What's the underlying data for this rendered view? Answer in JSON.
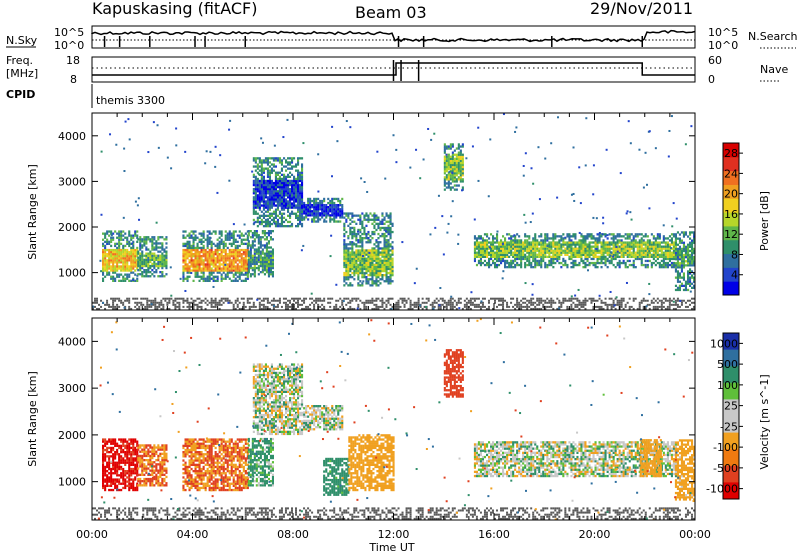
{
  "header": {
    "station": "Kapuskasing (fitACF)",
    "beam": "Beam 03",
    "date": "29/Nov/2011"
  },
  "status_panels": {
    "nsky_label": "N.Sky",
    "nsky_scale_top": "10^5",
    "nsky_scale_bottom": "10^0",
    "nsearch_label": "N.Search",
    "nsearch_scale_top": "10^5",
    "nsearch_scale_bottom": "10^0",
    "freq_label_line1": "Freq.",
    "freq_label_line2": "[MHz]",
    "freq_ticks": [
      "18",
      "8"
    ],
    "nave_label": "Nave",
    "nave_ticks": [
      "60",
      "0"
    ],
    "cpid_label": "CPID",
    "cpid_value": "themis 3300"
  },
  "colors": {
    "background_scatter": "#5a5a5a",
    "power_scale": [
      "#0000e6",
      "#2244cc",
      "#2f6f9f",
      "#2f8f6a",
      "#5fb64a",
      "#b6d62a",
      "#f0d020",
      "#f0a020",
      "#f07020",
      "#e03020",
      "#d80000"
    ],
    "velocity_scale": [
      "#1a2fa8",
      "#2f6f9f",
      "#2f8f6a",
      "#5fbf3a",
      "#c8c8c8",
      "#c8c8c8",
      "#f0a020",
      "#f07a10",
      "#e04020",
      "#e00000"
    ]
  },
  "chart_data": [
    {
      "type": "heatmap",
      "title": "Power",
      "ylabel": "Slant Range [km]",
      "xlabel": "Time UT",
      "x_ticks": [
        "00:00",
        "04:00",
        "08:00",
        "12:00",
        "16:00",
        "20:00",
        "00:00"
      ],
      "x_range_hours": [
        0,
        24
      ],
      "y_ticks": [
        1000,
        2000,
        3000,
        4000
      ],
      "y_range_km": [
        180,
        4500
      ],
      "colorbar_label": "Power [dB]",
      "colorbar_ticks": [
        "4",
        "8",
        "12",
        "16",
        "20",
        "24",
        "28"
      ],
      "colorbar_range": [
        0,
        30
      ],
      "regions": [
        {
          "t": [
            0.4,
            1.8
          ],
          "r": [
            800,
            1900
          ],
          "core": [
            1000,
            1500
          ],
          "peak": 24
        },
        {
          "t": [
            1.8,
            3.0
          ],
          "r": [
            900,
            1800
          ],
          "core": [
            1100,
            1400
          ],
          "peak": 16
        },
        {
          "t": [
            3.6,
            6.2
          ],
          "r": [
            800,
            1900
          ],
          "core": [
            1000,
            1500
          ],
          "peak": 26
        },
        {
          "t": [
            6.2,
            7.2
          ],
          "r": [
            900,
            1900
          ],
          "core": [
            1050,
            1450
          ],
          "peak": 14
        },
        {
          "t": [
            6.4,
            8.4
          ],
          "r": [
            2000,
            3500
          ],
          "core": [
            2400,
            3000
          ],
          "peak": 8
        },
        {
          "t": [
            8.4,
            10.0
          ],
          "r": [
            2100,
            2600
          ],
          "core": [
            2200,
            2500
          ],
          "peak": 6
        },
        {
          "t": [
            10.0,
            12.0
          ],
          "r": [
            700,
            2300
          ],
          "core": [
            900,
            1500
          ],
          "peak": 18
        },
        {
          "t": [
            14.0,
            14.8
          ],
          "r": [
            2800,
            3800
          ],
          "core": [
            3000,
            3600
          ],
          "peak": 18
        },
        {
          "t": [
            15.2,
            23.2
          ],
          "r": [
            1100,
            1850
          ],
          "core": [
            1300,
            1650
          ],
          "peak": 18
        },
        {
          "t": [
            23.2,
            24.0
          ],
          "r": [
            600,
            1900
          ],
          "core": [
            1100,
            1500
          ],
          "peak": 14
        }
      ]
    },
    {
      "type": "heatmap",
      "title": "Velocity",
      "ylabel": "Slant Range [km]",
      "xlabel": "Time UT",
      "x_ticks": [
        "00:00",
        "04:00",
        "08:00",
        "12:00",
        "16:00",
        "20:00",
        "00:00"
      ],
      "x_range_hours": [
        0,
        24
      ],
      "y_ticks": [
        1000,
        2000,
        3000,
        4000
      ],
      "y_range_km": [
        180,
        4500
      ],
      "colorbar_label": "Velocity [m s^-1]",
      "colorbar_ticks": [
        "1000",
        "500",
        "100",
        "25",
        "-25",
        "-100",
        "-500",
        "-1000"
      ],
      "regions": [
        {
          "t": [
            0.4,
            1.8
          ],
          "r": [
            800,
            1900
          ],
          "velocity": -800
        },
        {
          "t": [
            1.8,
            3.0
          ],
          "r": [
            900,
            1800
          ],
          "velocity": -300
        },
        {
          "t": [
            3.6,
            6.2
          ],
          "r": [
            800,
            1900
          ],
          "velocity": -300
        },
        {
          "t": [
            6.2,
            7.2
          ],
          "r": [
            900,
            1900
          ],
          "velocity": 100
        },
        {
          "t": [
            6.4,
            8.4
          ],
          "r": [
            2000,
            3500
          ],
          "velocity": 0
        },
        {
          "t": [
            8.4,
            10.0
          ],
          "r": [
            2100,
            2600
          ],
          "velocity": 0
        },
        {
          "t": [
            9.2,
            10.2
          ],
          "r": [
            700,
            1500
          ],
          "velocity": 150
        },
        {
          "t": [
            10.2,
            12.0
          ],
          "r": [
            800,
            2000
          ],
          "velocity": -200
        },
        {
          "t": [
            14.0,
            14.8
          ],
          "r": [
            2800,
            3800
          ],
          "velocity": -400
        },
        {
          "t": [
            15.2,
            23.2
          ],
          "r": [
            1100,
            1850
          ],
          "velocity": 0
        },
        {
          "t": [
            21.8,
            22.6
          ],
          "r": [
            1100,
            1900
          ],
          "velocity": -200
        },
        {
          "t": [
            23.2,
            24.0
          ],
          "r": [
            600,
            1900
          ],
          "velocity": -150
        }
      ]
    }
  ]
}
